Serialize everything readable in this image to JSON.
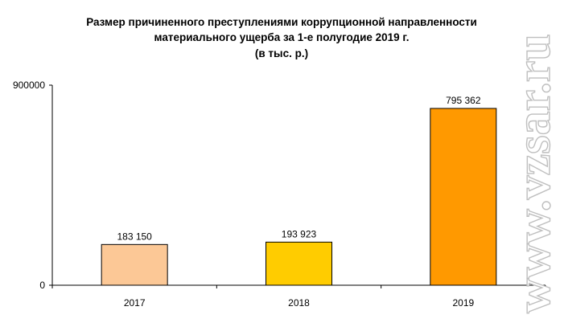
{
  "chart_data": {
    "type": "bar",
    "title_lines": [
      "Размер причиненного преступлениями коррупционной направленности",
      "материального ущерба за  1-е полугодие 2019 г.",
      "(в тыс. р.)"
    ],
    "categories": [
      "2017",
      "2018",
      "2019"
    ],
    "values": [
      183150,
      193923,
      795362
    ],
    "value_labels": [
      "183 150",
      "193 923",
      "795 362"
    ],
    "bar_colors": [
      "#fcc896",
      "#ffcc00",
      "#ff9900"
    ],
    "ylim": [
      0,
      900000
    ],
    "y_tick_labels": [
      "0",
      "900000"
    ],
    "grid": false,
    "legend": "none"
  },
  "watermark": {
    "text": "www.vzsar.ru"
  }
}
